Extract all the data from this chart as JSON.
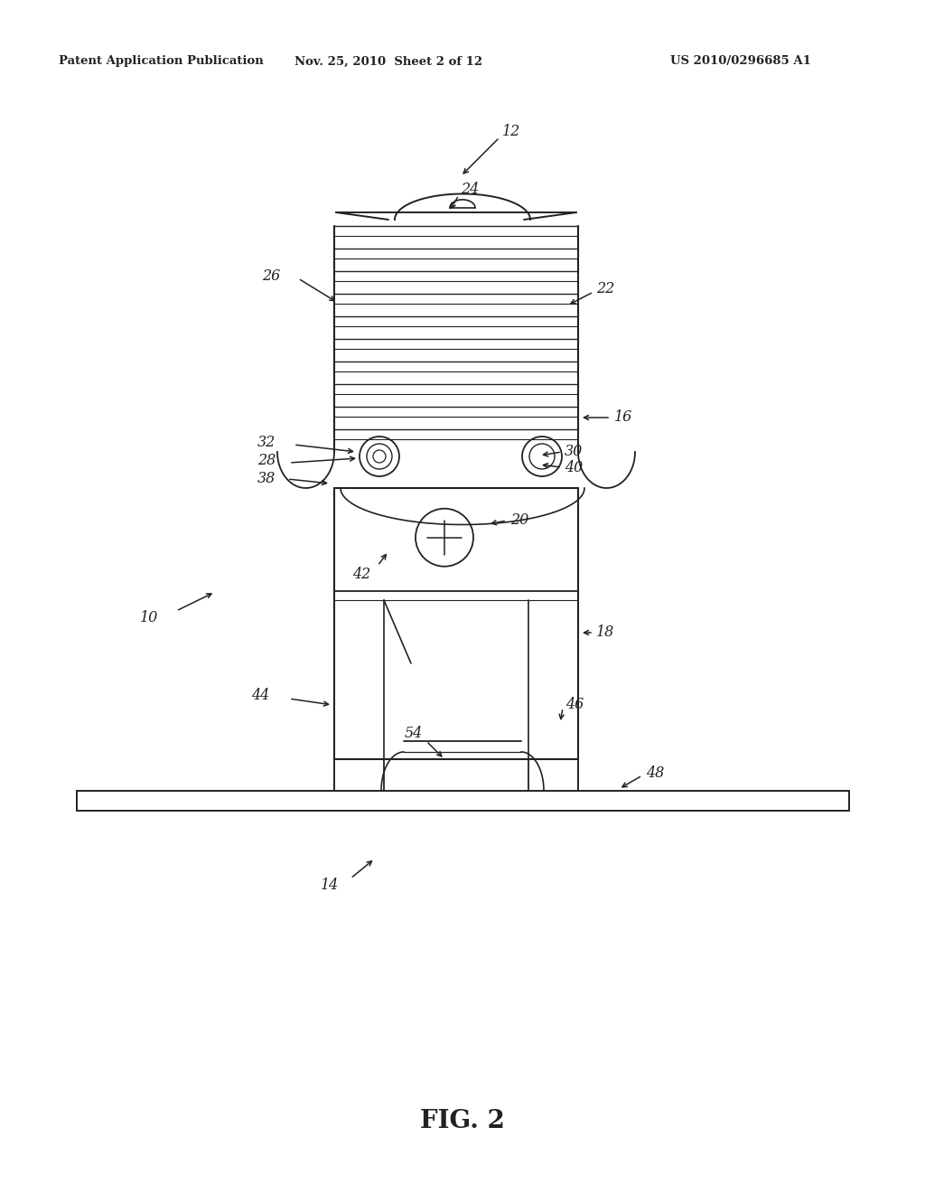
{
  "bg_color": "#ffffff",
  "header_left": "Patent Application Publication",
  "header_mid": "Nov. 25, 2010  Sheet 2 of 12",
  "header_right": "US 2010/0296685 A1",
  "fig_label": "FIG. 2",
  "line_color": "#222222"
}
